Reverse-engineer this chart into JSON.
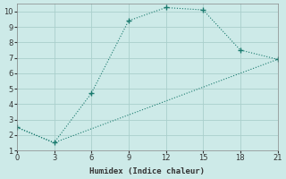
{
  "xlabel": "Humidex (Indice chaleur)",
  "line1_x": [
    0,
    3,
    6,
    9,
    12,
    15,
    18,
    21
  ],
  "line1_y": [
    2.5,
    1.5,
    4.7,
    9.4,
    10.25,
    10.1,
    7.5,
    6.9
  ],
  "line2_x": [
    0,
    3,
    21
  ],
  "line2_y": [
    2.5,
    1.5,
    6.9
  ],
  "line_color": "#1a7a6e",
  "bg_color": "#cdeae8",
  "grid_color": "#aacfcc",
  "xlim": [
    0,
    21
  ],
  "ylim": [
    1,
    10.5
  ],
  "xticks": [
    0,
    3,
    6,
    9,
    12,
    15,
    18,
    21
  ],
  "yticks": [
    1,
    2,
    3,
    4,
    5,
    6,
    7,
    8,
    9,
    10
  ]
}
